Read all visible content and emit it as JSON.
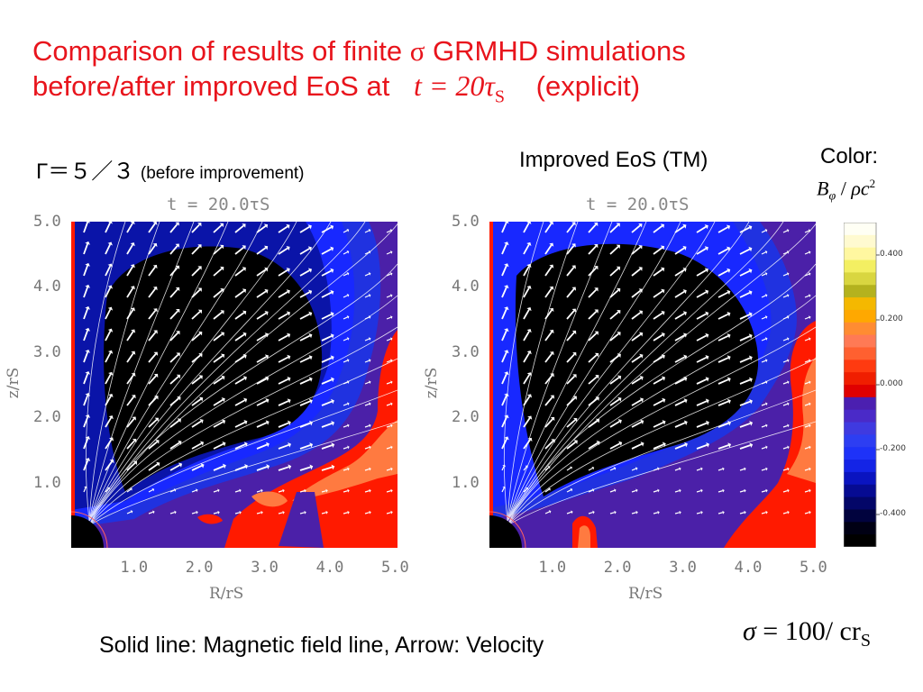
{
  "title": {
    "line1_before": "Comparison of results of finite ",
    "sigma": "σ",
    "line1_after": " GRMHD simulations",
    "line2_before": "before/after improved EoS at ",
    "time_expr": "t = 20τ",
    "time_sub": "S",
    "line2_after": "(explicit)"
  },
  "left_label": {
    "main": "Γ＝５／３",
    "paren": "(before improvement)"
  },
  "right_label": "Improved EoS (TM)",
  "color_label": {
    "line1": "Color:",
    "num": "B",
    "num_sub": "φ",
    "slash": " / ",
    "den": "ρc",
    "den_sup": "2"
  },
  "footer": "Solid line: Magnetic field line, Arrow: Velocity",
  "sigma_note": {
    "sym": "σ",
    "expr": " = 100/ cr",
    "sub": "S"
  },
  "chart_data": [
    {
      "type": "heatmap",
      "title": "t = 20.0τS",
      "xlabel": "R/rS",
      "ylabel": "z/rS",
      "xlim": [
        0,
        5.0
      ],
      "ylim": [
        0,
        5.0
      ],
      "xticks": [
        "1.0",
        "2.0",
        "3.0",
        "4.0",
        "5.0"
      ],
      "yticks": [
        "1.0",
        "2.0",
        "3.0",
        "4.0",
        "5.0"
      ]
    },
    {
      "type": "heatmap",
      "title": "t = 20.0τS",
      "xlabel": "R/rS",
      "ylabel": "z/rS",
      "xlim": [
        0,
        5.0
      ],
      "ylim": [
        0,
        5.0
      ],
      "xticks": [
        "1.0",
        "2.0",
        "3.0",
        "4.0",
        "5.0"
      ],
      "yticks": [
        "1.0",
        "2.0",
        "3.0",
        "4.0",
        "5.0"
      ]
    }
  ],
  "colorbar": {
    "ticks": [
      "0.400",
      "0.200",
      "0.000",
      "-0.200",
      "-0.400"
    ],
    "tick_values": [
      0.4,
      0.2,
      0.0,
      -0.2,
      -0.4
    ],
    "range": [
      -0.5,
      0.5
    ],
    "colors": [
      "#fffff4",
      "#fffad0",
      "#fff7a0",
      "#f3ef62",
      "#d9d640",
      "#b4b21e",
      "#f4b800",
      "#ffa800",
      "#ff8c32",
      "#ff7a55",
      "#ff6030",
      "#ff3a10",
      "#f01e00",
      "#e00000",
      "#4b1fb0",
      "#4a2ac8",
      "#3f3ae0",
      "#2d3ef2",
      "#1e32f8",
      "#1424e6",
      "#0a14c0",
      "#060b92",
      "#030668",
      "#01033e",
      "#000014",
      "#000000"
    ]
  }
}
